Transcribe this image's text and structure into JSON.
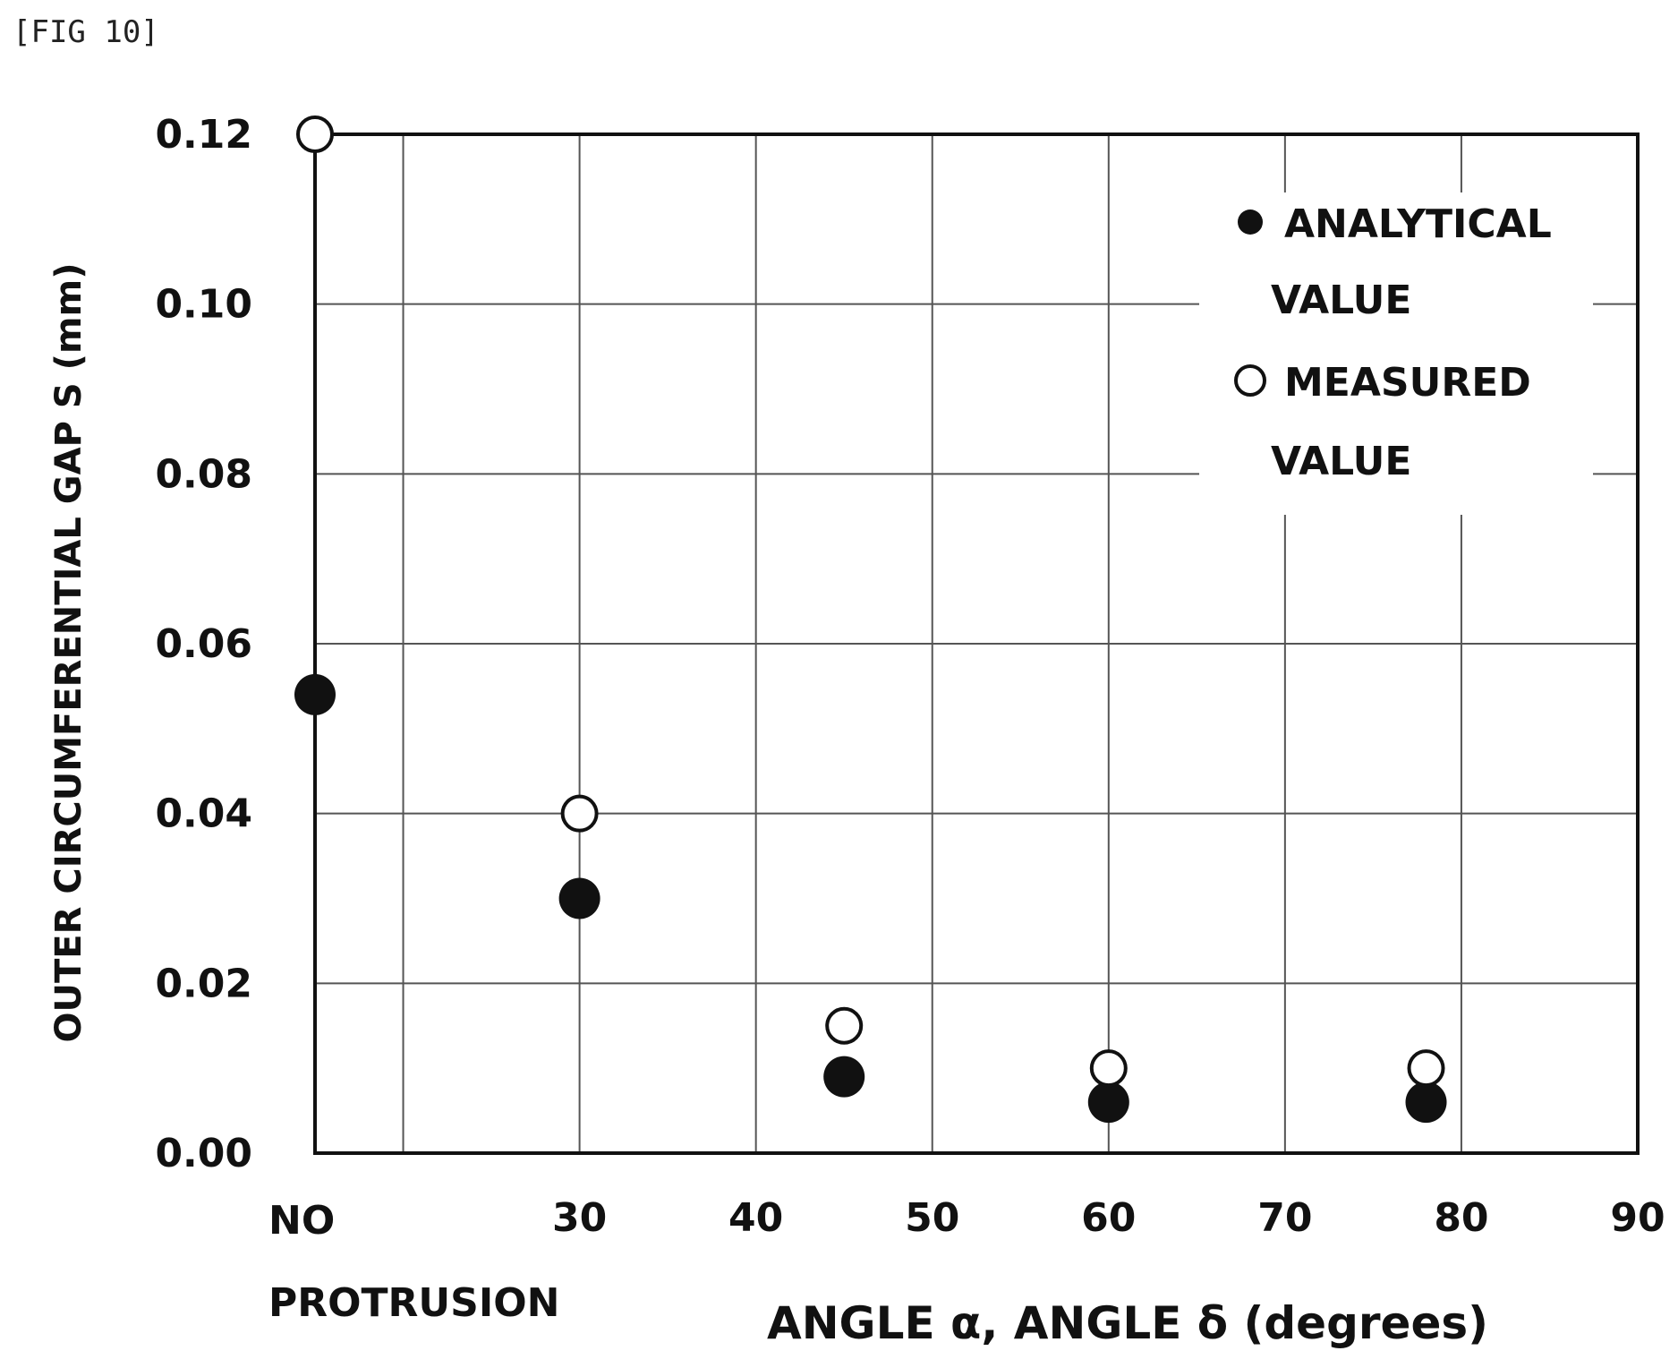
{
  "figure_label": "[FIG 10]",
  "chart_data": {
    "type": "scatter",
    "xlabel": "ANGLE α, ANGLE δ (degrees)",
    "ylabel": "OUTER CIRCUMFERENTIAL GAP S (mm)",
    "x_category_label": [
      "NO",
      "PROTRUSION"
    ],
    "x_ticks": [
      30,
      40,
      50,
      60,
      70,
      80,
      90
    ],
    "y_ticks": [
      "0.00",
      "0.02",
      "0.04",
      "0.06",
      "0.08",
      "0.10",
      "0.12"
    ],
    "xlim": [
      15,
      90
    ],
    "ylim": [
      0,
      0.12
    ],
    "grid": true,
    "legend_position": "top-right",
    "series": [
      {
        "name": "ANALYTICAL VALUE",
        "legend_lines": [
          "ANALYTICAL",
          "VALUE"
        ],
        "marker": "filled-circle",
        "points": [
          {
            "x": "NO PROTRUSION",
            "y": 0.054
          },
          {
            "x": 30,
            "y": 0.03
          },
          {
            "x": 45,
            "y": 0.009
          },
          {
            "x": 60,
            "y": 0.006
          },
          {
            "x": 78,
            "y": 0.006
          }
        ]
      },
      {
        "name": "MEASURED VALUE",
        "legend_lines": [
          "MEASURED",
          "VALUE"
        ],
        "marker": "open-circle",
        "points": [
          {
            "x": "NO PROTRUSION",
            "y": 0.12
          },
          {
            "x": 30,
            "y": 0.04
          },
          {
            "x": 45,
            "y": 0.015
          },
          {
            "x": 60,
            "y": 0.01
          },
          {
            "x": 78,
            "y": 0.01
          }
        ]
      }
    ]
  }
}
